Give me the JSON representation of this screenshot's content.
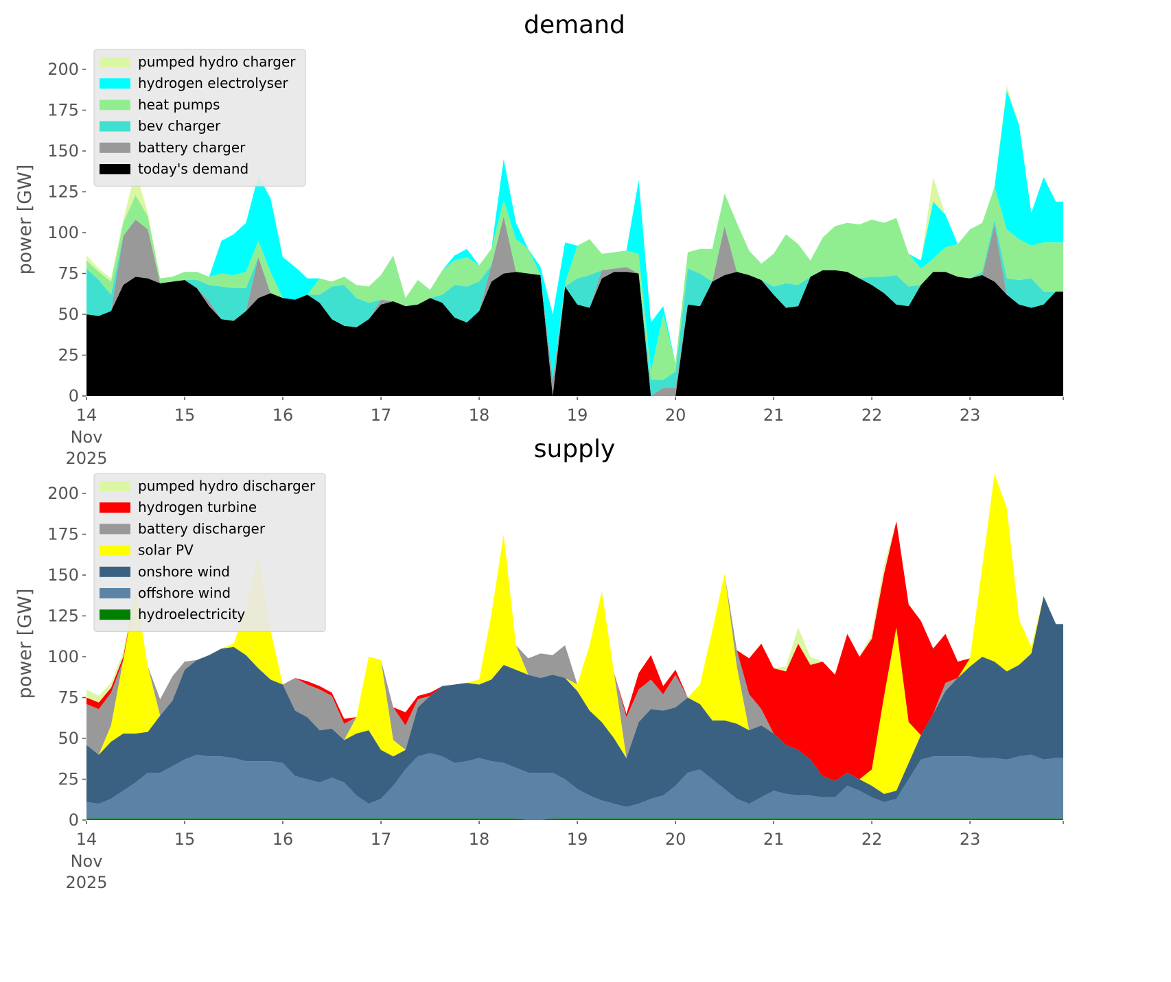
{
  "chart_data": [
    {
      "type": "area",
      "stacked": true,
      "title": "demand",
      "xlabel": "",
      "ylabel": "power [GW]",
      "ylim": [
        0,
        210
      ],
      "xlim": [
        14,
        23.95
      ],
      "x_ticks": [
        "14",
        "15",
        "16",
        "17",
        "18",
        "19",
        "20",
        "21",
        "22",
        "23"
      ],
      "x_tick_sub": [
        "Nov",
        "2025"
      ],
      "y_ticks": [
        "0",
        "25",
        "50",
        "75",
        "100",
        "125",
        "150",
        "175",
        "200"
      ],
      "grid": false,
      "legend_position": "top-left",
      "x_start_day": 14,
      "x_step_days": 0.125,
      "series": [
        {
          "name": "today's demand",
          "color": "#000000",
          "values": [
            50,
            49,
            52,
            68,
            73,
            72,
            69,
            70,
            71,
            66,
            55,
            47,
            46,
            52,
            60,
            63,
            60,
            59,
            62,
            57,
            47,
            43,
            42,
            47,
            56,
            58,
            55,
            56,
            60,
            57,
            48,
            45,
            52,
            70,
            75,
            76,
            75,
            74,
            0,
            67,
            56,
            54,
            72,
            76,
            76,
            75,
            0,
            0,
            0,
            56,
            55,
            70,
            74,
            76,
            74,
            71,
            62,
            54,
            55,
            73,
            77,
            77,
            76,
            72,
            68,
            63,
            56,
            55,
            68,
            76,
            76,
            73,
            72,
            74,
            70,
            62,
            56,
            54,
            56,
            64
          ]
        },
        {
          "name": "battery charger",
          "color": "#999999",
          "values": [
            0,
            0,
            0,
            30,
            35,
            30,
            0,
            0,
            0,
            0,
            3,
            0,
            0,
            0,
            25,
            0,
            0,
            0,
            0,
            0,
            0,
            0,
            0,
            0,
            3,
            0,
            0,
            0,
            0,
            0,
            0,
            0,
            0,
            10,
            35,
            0,
            0,
            0,
            10,
            0,
            0,
            0,
            5,
            2,
            3,
            0,
            0,
            5,
            5,
            0,
            0,
            0,
            30,
            0,
            0,
            0,
            0,
            0,
            0,
            0,
            0,
            0,
            0,
            0,
            0,
            0,
            0,
            0,
            0,
            0,
            0,
            0,
            0,
            0,
            35,
            0,
            0,
            0,
            0,
            0
          ]
        },
        {
          "name": "bev charger",
          "color": "#40e0d0",
          "values": [
            28,
            22,
            10,
            0,
            0,
            0,
            0,
            0,
            0,
            5,
            10,
            20,
            20,
            14,
            0,
            0,
            0,
            0,
            0,
            5,
            20,
            25,
            18,
            10,
            0,
            0,
            0,
            0,
            0,
            5,
            20,
            22,
            18,
            0,
            0,
            0,
            0,
            0,
            0,
            0,
            16,
            20,
            0,
            0,
            0,
            0,
            10,
            5,
            10,
            22,
            20,
            0,
            0,
            0,
            0,
            0,
            5,
            15,
            13,
            0,
            0,
            0,
            0,
            0,
            5,
            10,
            18,
            12,
            0,
            0,
            0,
            0,
            0,
            2,
            3,
            10,
            15,
            18,
            8,
            0
          ]
        },
        {
          "name": "heat pumps",
          "color": "#90ee90",
          "values": [
            5,
            5,
            8,
            8,
            15,
            8,
            3,
            3,
            5,
            5,
            5,
            8,
            8,
            10,
            10,
            13,
            0,
            0,
            0,
            10,
            3,
            5,
            8,
            10,
            15,
            28,
            5,
            15,
            5,
            15,
            15,
            18,
            10,
            10,
            10,
            20,
            15,
            0,
            0,
            2,
            20,
            22,
            10,
            10,
            10,
            12,
            5,
            40,
            5,
            10,
            15,
            20,
            20,
            30,
            15,
            10,
            20,
            30,
            25,
            10,
            20,
            27,
            30,
            33,
            35,
            33,
            35,
            20,
            10,
            8,
            15,
            20,
            30,
            30,
            20,
            30,
            25,
            20,
            30,
            30
          ]
        },
        {
          "name": "hydrogen electrolyser",
          "color": "#00ffff",
          "values": [
            0,
            0,
            0,
            0,
            0,
            0,
            0,
            0,
            0,
            0,
            0,
            20,
            25,
            30,
            40,
            45,
            25,
            20,
            10,
            0,
            0,
            0,
            0,
            0,
            0,
            0,
            0,
            0,
            0,
            0,
            3,
            5,
            0,
            0,
            25,
            10,
            0,
            5,
            40,
            25,
            0,
            0,
            0,
            0,
            0,
            45,
            30,
            5,
            0,
            0,
            0,
            0,
            0,
            0,
            0,
            0,
            0,
            0,
            0,
            0,
            0,
            0,
            0,
            0,
            0,
            0,
            0,
            0,
            5,
            35,
            20,
            0,
            0,
            0,
            0,
            85,
            70,
            20,
            40,
            25
          ]
        },
        {
          "name": "pumped hydro charger",
          "color": "#dbf7a4",
          "values": [
            3,
            2,
            2,
            2,
            15,
            2,
            0,
            0,
            0,
            0,
            0,
            0,
            0,
            0,
            0,
            0,
            0,
            0,
            0,
            0,
            0,
            0,
            0,
            0,
            0,
            0,
            0,
            0,
            0,
            0,
            0,
            0,
            0,
            0,
            0,
            0,
            0,
            0,
            0,
            0,
            0,
            0,
            0,
            0,
            0,
            0,
            0,
            0,
            0,
            0,
            0,
            0,
            0,
            0,
            0,
            0,
            0,
            0,
            0,
            0,
            0,
            0,
            0,
            0,
            0,
            0,
            0,
            0,
            0,
            15,
            0,
            0,
            0,
            0,
            0,
            3,
            0,
            0,
            0,
            0
          ]
        }
      ]
    },
    {
      "type": "area",
      "stacked": true,
      "title": "supply",
      "xlabel": "",
      "ylabel": "power [GW]",
      "ylim": [
        0,
        210
      ],
      "xlim": [
        14,
        23.95
      ],
      "x_ticks": [
        "14",
        "15",
        "16",
        "17",
        "18",
        "19",
        "20",
        "21",
        "22",
        "23"
      ],
      "x_tick_sub": [
        "Nov",
        "2025"
      ],
      "y_ticks": [
        "0",
        "25",
        "50",
        "75",
        "100",
        "125",
        "150",
        "175",
        "200"
      ],
      "grid": false,
      "legend_position": "top-left",
      "x_start_day": 14,
      "x_step_days": 0.125,
      "series": [
        {
          "name": "hydroelectricity",
          "color": "#008000",
          "values": [
            1,
            1,
            1,
            1,
            1,
            1,
            1,
            1,
            1,
            1,
            1,
            1,
            1,
            1,
            1,
            1,
            1,
            1,
            1,
            1,
            1,
            1,
            1,
            1,
            1,
            1,
            1,
            1,
            1,
            1,
            1,
            1,
            1,
            1,
            1,
            1,
            0,
            0,
            1,
            1,
            1,
            1,
            1,
            1,
            1,
            1,
            1,
            1,
            1,
            1,
            1,
            1,
            1,
            1,
            1,
            1,
            1,
            1,
            1,
            1,
            1,
            1,
            1,
            1,
            1,
            1,
            1,
            1,
            1,
            1,
            1,
            1,
            1,
            1,
            1,
            1,
            1,
            1,
            1,
            1
          ]
        },
        {
          "name": "offshore wind",
          "color": "#5b83a5",
          "values": [
            10,
            9,
            12,
            17,
            22,
            28,
            28,
            32,
            36,
            39,
            38,
            38,
            37,
            35,
            35,
            35,
            34,
            26,
            24,
            22,
            25,
            22,
            14,
            9,
            12,
            20,
            30,
            38,
            40,
            38,
            34,
            35,
            37,
            35,
            34,
            31,
            29,
            29,
            28,
            24,
            18,
            14,
            11,
            9,
            7,
            9,
            12,
            14,
            20,
            28,
            30,
            24,
            18,
            12,
            9,
            13,
            17,
            15,
            14,
            14,
            13,
            13,
            20,
            17,
            13,
            10,
            12,
            24,
            36,
            38,
            38,
            38,
            38,
            37,
            37,
            36,
            38,
            39,
            36,
            37
          ]
        },
        {
          "name": "onshore wind",
          "color": "#3b6182",
          "values": [
            35,
            30,
            35,
            35,
            30,
            25,
            35,
            40,
            55,
            58,
            62,
            66,
            68,
            65,
            57,
            50,
            48,
            40,
            38,
            32,
            30,
            26,
            38,
            45,
            30,
            18,
            12,
            30,
            35,
            43,
            48,
            48,
            45,
            50,
            60,
            60,
            60,
            58,
            60,
            62,
            60,
            52,
            48,
            40,
            30,
            50,
            55,
            52,
            48,
            46,
            40,
            36,
            42,
            46,
            45,
            44,
            35,
            30,
            28,
            22,
            13,
            10,
            8,
            7,
            7,
            5,
            5,
            10,
            15,
            26,
            40,
            48,
            55,
            62,
            59,
            54,
            56,
            62,
            100,
            82
          ]
        },
        {
          "name": "solar PV",
          "color": "#ffff00",
          "values": [
            0,
            0,
            10,
            45,
            88,
            40,
            0,
            0,
            0,
            0,
            0,
            0,
            2,
            28,
            70,
            30,
            0,
            0,
            0,
            0,
            0,
            0,
            10,
            45,
            55,
            10,
            0,
            0,
            0,
            0,
            0,
            0,
            3,
            40,
            80,
            15,
            0,
            0,
            0,
            0,
            4,
            40,
            80,
            40,
            0,
            0,
            0,
            0,
            0,
            0,
            12,
            55,
            90,
            35,
            0,
            0,
            0,
            0,
            0,
            0,
            0,
            0,
            0,
            0,
            10,
            60,
            100,
            25,
            0,
            0,
            0,
            0,
            5,
            55,
            115,
            100,
            28,
            4,
            0,
            0
          ]
        },
        {
          "name": "battery discharger",
          "color": "#999999",
          "values": [
            25,
            28,
            20,
            0,
            0,
            0,
            10,
            15,
            5,
            0,
            0,
            0,
            0,
            0,
            0,
            0,
            0,
            20,
            20,
            25,
            20,
            10,
            0,
            0,
            0,
            20,
            15,
            5,
            0,
            0,
            0,
            0,
            0,
            0,
            0,
            0,
            10,
            15,
            12,
            20,
            0,
            0,
            0,
            0,
            25,
            20,
            18,
            10,
            20,
            0,
            0,
            0,
            0,
            10,
            22,
            10,
            0,
            0,
            0,
            0,
            0,
            0,
            0,
            0,
            0,
            0,
            0,
            0,
            0,
            0,
            5,
            0,
            0,
            0,
            0,
            0,
            0,
            0,
            0,
            0
          ]
        },
        {
          "name": "hydrogen turbine",
          "color": "#ff0000",
          "values": [
            4,
            4,
            3,
            2,
            0,
            0,
            0,
            0,
            0,
            0,
            0,
            0,
            0,
            0,
            0,
            0,
            0,
            0,
            2,
            2,
            2,
            3,
            0,
            0,
            0,
            0,
            8,
            2,
            2,
            0,
            0,
            0,
            0,
            0,
            0,
            0,
            0,
            0,
            0,
            0,
            0,
            0,
            0,
            0,
            2,
            10,
            15,
            5,
            3,
            0,
            0,
            0,
            0,
            0,
            22,
            40,
            40,
            45,
            65,
            58,
            70,
            65,
            85,
            75,
            80,
            75,
            65,
            72,
            70,
            40,
            30,
            10,
            0,
            0,
            0,
            0,
            0,
            0,
            0,
            0
          ]
        },
        {
          "name": "pumped hydro discharger",
          "color": "#dbf7a4",
          "values": [
            5,
            4,
            3,
            3,
            0,
            0,
            0,
            0,
            0,
            0,
            0,
            0,
            0,
            0,
            0,
            0,
            0,
            0,
            0,
            0,
            0,
            0,
            0,
            0,
            0,
            0,
            0,
            0,
            0,
            0,
            0,
            0,
            0,
            0,
            0,
            0,
            0,
            0,
            0,
            0,
            0,
            0,
            0,
            0,
            0,
            0,
            0,
            0,
            0,
            0,
            0,
            0,
            0,
            0,
            0,
            0,
            0,
            3,
            10,
            5,
            0,
            0,
            0,
            0,
            3,
            5,
            0,
            0,
            0,
            0,
            0,
            0,
            0,
            0,
            0,
            0,
            0,
            0,
            0,
            0
          ]
        }
      ]
    }
  ],
  "legends": {
    "demand": [
      "pumped hydro charger",
      "hydrogen electrolyser",
      "heat pumps",
      "bev charger",
      "battery charger",
      "today's demand"
    ],
    "supply": [
      "pumped hydro discharger",
      "hydrogen turbine",
      "battery discharger",
      "solar PV",
      "onshore wind",
      "offshore wind",
      "hydroelectricity"
    ]
  }
}
